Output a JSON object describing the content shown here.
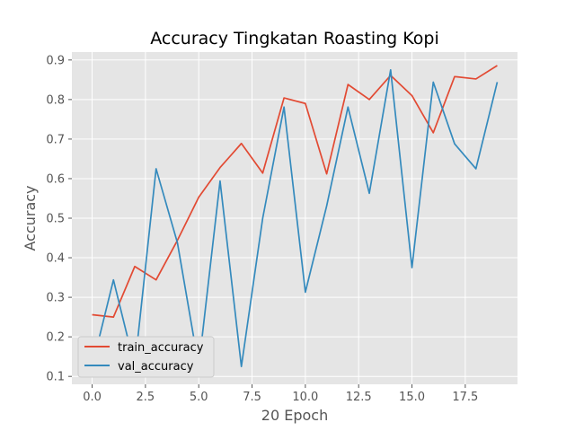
{
  "chart_data": {
    "type": "line",
    "title": "Accuracy Tingkatan Roasting Kopi",
    "xlabel": "20 Epoch",
    "ylabel": "Accuracy",
    "xlim": [
      -0.95,
      19.95
    ],
    "ylim": [
      0.08,
      0.92
    ],
    "xticks": [
      0.0,
      2.5,
      5.0,
      7.5,
      10.0,
      12.5,
      15.0,
      17.5
    ],
    "xtick_labels": [
      "0.0",
      "2.5",
      "5.0",
      "7.5",
      "10.0",
      "12.5",
      "15.0",
      "17.5"
    ],
    "yticks": [
      0.1,
      0.2,
      0.3,
      0.4,
      0.5,
      0.6,
      0.7,
      0.8,
      0.9
    ],
    "ytick_labels": [
      "0.1",
      "0.2",
      "0.3",
      "0.4",
      "0.5",
      "0.6",
      "0.7",
      "0.8",
      "0.9"
    ],
    "grid": true,
    "legend_position": "lower-left",
    "x": [
      0,
      1,
      2,
      3,
      4,
      5,
      6,
      7,
      8,
      9,
      10,
      11,
      12,
      13,
      14,
      15,
      16,
      17,
      18,
      19
    ],
    "series": [
      {
        "name": "train_accuracy",
        "color": "#E24A33",
        "values": [
          0.256,
          0.25,
          0.378,
          0.344,
          0.444,
          0.553,
          0.628,
          0.689,
          0.614,
          0.804,
          0.79,
          0.612,
          0.838,
          0.8,
          0.861,
          0.81,
          0.716,
          0.858,
          0.852,
          0.886
        ]
      },
      {
        "name": "val_accuracy",
        "color": "#348ABD",
        "values": [
          0.125,
          0.344,
          0.125,
          0.625,
          0.438,
          0.125,
          0.594,
          0.125,
          0.5,
          0.781,
          0.313,
          0.531,
          0.781,
          0.563,
          0.875,
          0.375,
          0.844,
          0.688,
          0.625,
          0.844
        ]
      }
    ]
  }
}
